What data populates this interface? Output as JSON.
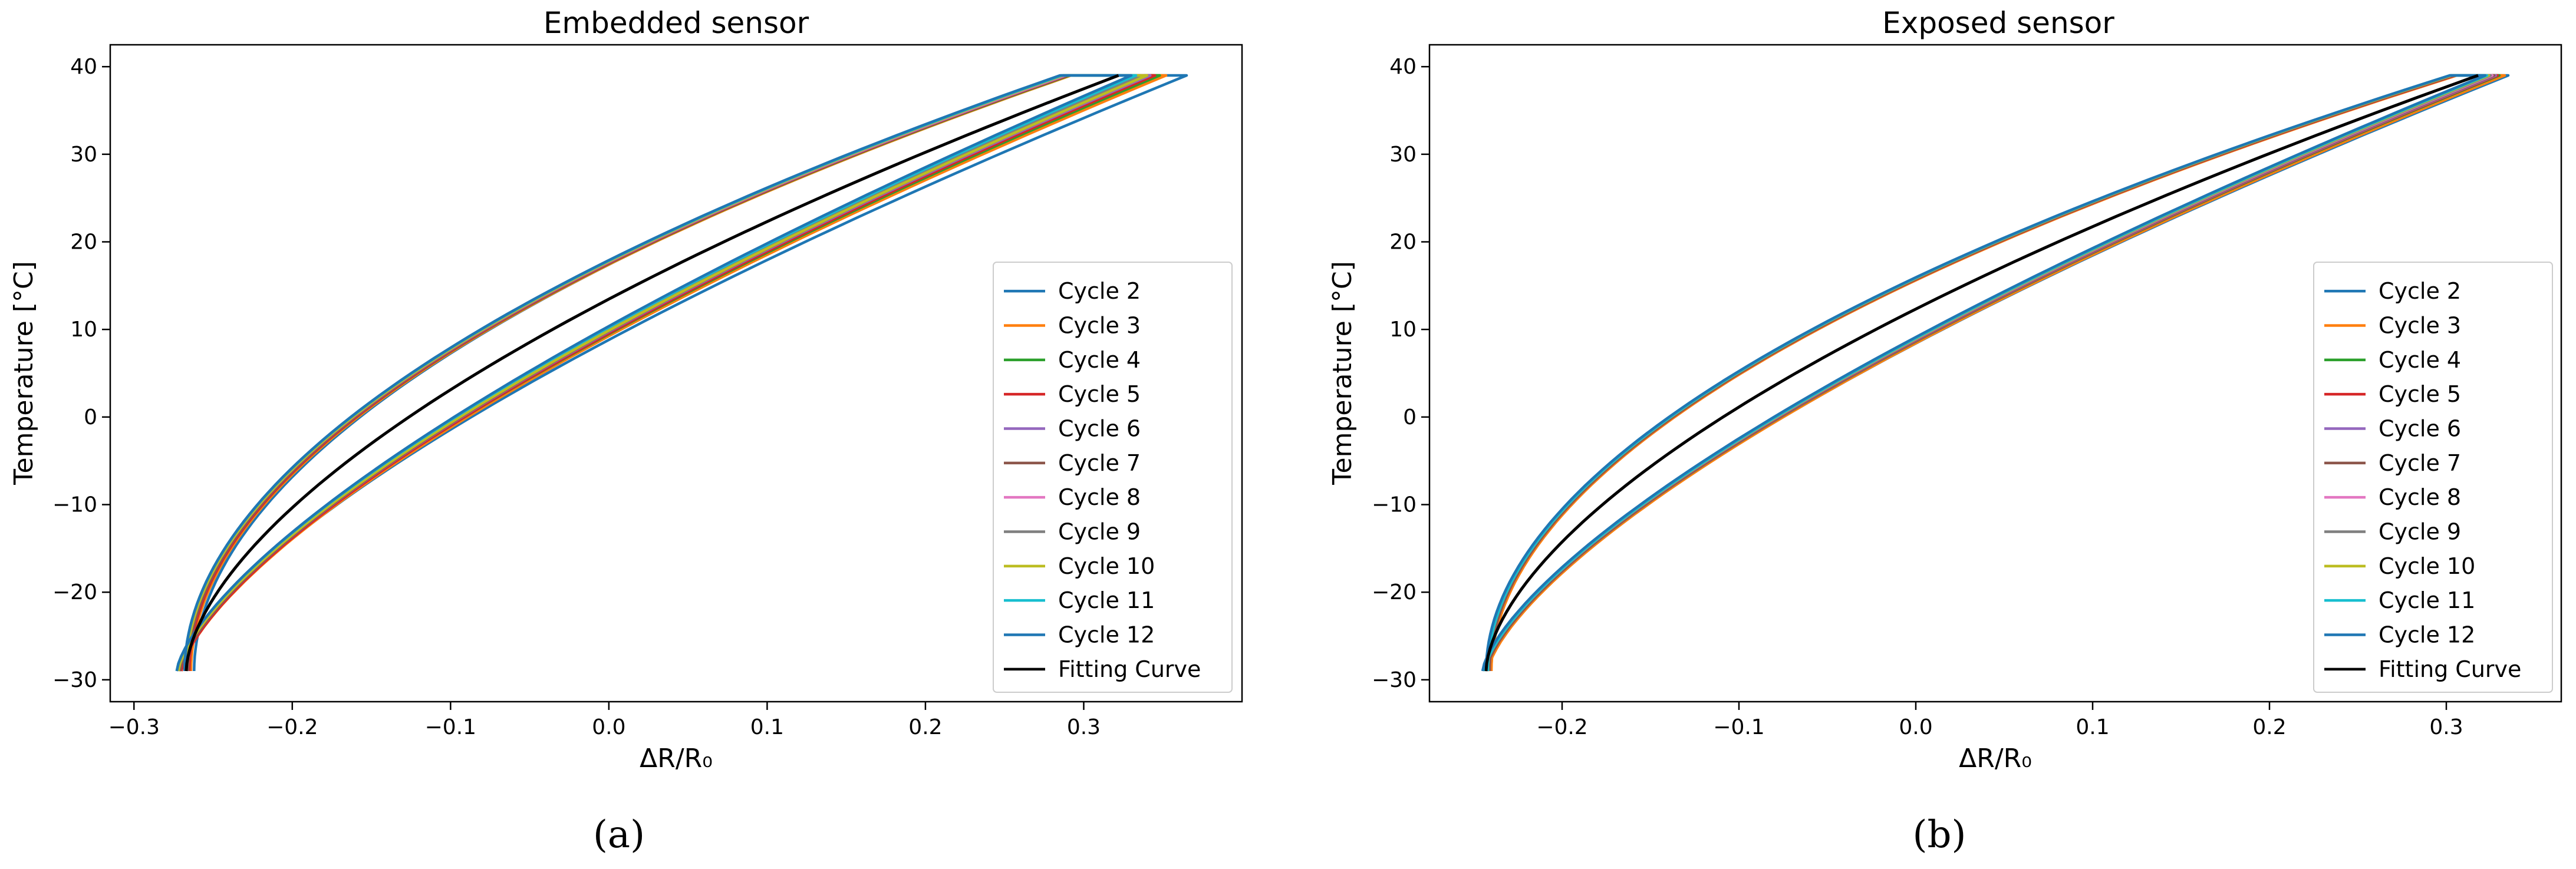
{
  "figure": {
    "panel_labels": [
      "(a)",
      "(b)"
    ]
  },
  "legend_entries": [
    {
      "label": "Cycle 2",
      "color": "#1f77b4"
    },
    {
      "label": "Cycle 3",
      "color": "#ff7f0e"
    },
    {
      "label": "Cycle 4",
      "color": "#2ca02c"
    },
    {
      "label": "Cycle 5",
      "color": "#d62728"
    },
    {
      "label": "Cycle 6",
      "color": "#9467bd"
    },
    {
      "label": "Cycle 7",
      "color": "#8c564b"
    },
    {
      "label": "Cycle 8",
      "color": "#e377c2"
    },
    {
      "label": "Cycle 9",
      "color": "#7f7f7f"
    },
    {
      "label": "Cycle 10",
      "color": "#bcbd22"
    },
    {
      "label": "Cycle 11",
      "color": "#17becf"
    },
    {
      "label": "Cycle 12",
      "color": "#1f77b4"
    },
    {
      "label": "Fitting Curve",
      "color": "#000000"
    }
  ],
  "chart_data": [
    {
      "type": "line",
      "title": "Embedded sensor",
      "xlabel": "ΔR/R₀",
      "ylabel": "Temperature [°C]",
      "xlim": [
        -0.315,
        0.4
      ],
      "ylim": [
        -32.5,
        42.5
      ],
      "xticks": [
        -0.3,
        -0.2,
        -0.1,
        0.0,
        0.1,
        0.2,
        0.3
      ],
      "xtick_labels": [
        "−0.3",
        "−0.2",
        "−0.1",
        "0.0",
        "0.1",
        "0.2",
        "0.3"
      ],
      "yticks": [
        -30,
        -20,
        -10,
        0,
        10,
        20,
        30,
        40
      ],
      "ytick_labels": [
        "−30",
        "−20",
        "−10",
        "0",
        "10",
        "20",
        "30",
        "40"
      ],
      "grid": false,
      "legend_position": "lower-right",
      "series": [
        {
          "name": "Cycle 2",
          "x_start": -0.272,
          "x_heat_end": 0.365,
          "x_cool_end": 0.29,
          "x_cool_start": -0.262
        },
        {
          "name": "Cycle 3",
          "x_start": -0.27,
          "x_heat_end": 0.352,
          "x_cool_end": 0.292,
          "x_cool_start": -0.264
        },
        {
          "name": "Cycle 4",
          "x_start": -0.271,
          "x_heat_end": 0.348,
          "x_cool_end": 0.291,
          "x_cool_start": -0.265
        },
        {
          "name": "Cycle 5",
          "x_start": -0.27,
          "x_heat_end": 0.345,
          "x_cool_end": 0.29,
          "x_cool_start": -0.265
        },
        {
          "name": "Cycle 6",
          "x_start": -0.271,
          "x_heat_end": 0.342,
          "x_cool_end": 0.289,
          "x_cool_start": -0.266
        },
        {
          "name": "Cycle 7",
          "x_start": -0.271,
          "x_heat_end": 0.34,
          "x_cool_end": 0.288,
          "x_cool_start": -0.266
        },
        {
          "name": "Cycle 8",
          "x_start": -0.272,
          "x_heat_end": 0.338,
          "x_cool_end": 0.288,
          "x_cool_start": -0.267
        },
        {
          "name": "Cycle 9",
          "x_start": -0.272,
          "x_heat_end": 0.336,
          "x_cool_end": 0.287,
          "x_cool_start": -0.267
        },
        {
          "name": "Cycle 10",
          "x_start": -0.272,
          "x_heat_end": 0.34,
          "x_cool_end": 0.287,
          "x_cool_start": -0.267
        },
        {
          "name": "Cycle 11",
          "x_start": -0.273,
          "x_heat_end": 0.333,
          "x_cool_end": 0.286,
          "x_cool_start": -0.268
        },
        {
          "name": "Cycle 12",
          "x_start": -0.273,
          "x_heat_end": 0.33,
          "x_cool_end": 0.285,
          "x_cool_start": -0.268
        }
      ],
      "fit": {
        "name": "Fitting Curve",
        "x_start": -0.267,
        "x_end": 0.322,
        "y_start": -29,
        "y_end": 39
      },
      "y_range": [
        -29,
        39
      ]
    },
    {
      "type": "line",
      "title": "Exposed sensor",
      "xlabel": "ΔR/R₀",
      "ylabel": "Temperature [°C]",
      "xlim": [
        -0.275,
        0.365
      ],
      "ylim": [
        -32.5,
        42.5
      ],
      "xticks": [
        -0.2,
        -0.1,
        0.0,
        0.1,
        0.2,
        0.3
      ],
      "xtick_labels": [
        "−0.2",
        "−0.1",
        "0.0",
        "0.1",
        "0.2",
        "0.3"
      ],
      "yticks": [
        -30,
        -20,
        -10,
        0,
        10,
        20,
        30,
        40
      ],
      "ytick_labels": [
        "−30",
        "−20",
        "−10",
        "0",
        "10",
        "20",
        "30",
        "40"
      ],
      "grid": false,
      "legend_position": "lower-right",
      "series": [
        {
          "name": "Cycle 2",
          "x_start": -0.243,
          "x_heat_end": 0.335,
          "x_cool_end": 0.305,
          "x_cool_start": -0.241
        },
        {
          "name": "Cycle 3",
          "x_start": -0.242,
          "x_heat_end": 0.333,
          "x_cool_end": 0.306,
          "x_cool_start": -0.24
        },
        {
          "name": "Cycle 4",
          "x_start": -0.243,
          "x_heat_end": 0.33,
          "x_cool_end": 0.305,
          "x_cool_start": -0.241
        },
        {
          "name": "Cycle 5",
          "x_start": -0.243,
          "x_heat_end": 0.329,
          "x_cool_end": 0.305,
          "x_cool_start": -0.241
        },
        {
          "name": "Cycle 6",
          "x_start": -0.243,
          "x_heat_end": 0.328,
          "x_cool_end": 0.304,
          "x_cool_start": -0.241
        },
        {
          "name": "Cycle 7",
          "x_start": -0.243,
          "x_heat_end": 0.327,
          "x_cool_end": 0.304,
          "x_cool_start": -0.241
        },
        {
          "name": "Cycle 8",
          "x_start": -0.244,
          "x_heat_end": 0.326,
          "x_cool_end": 0.303,
          "x_cool_start": -0.242
        },
        {
          "name": "Cycle 9",
          "x_start": -0.244,
          "x_heat_end": 0.325,
          "x_cool_end": 0.303,
          "x_cool_start": -0.242
        },
        {
          "name": "Cycle 10",
          "x_start": -0.244,
          "x_heat_end": 0.324,
          "x_cool_end": 0.303,
          "x_cool_start": -0.242
        },
        {
          "name": "Cycle 11",
          "x_start": -0.244,
          "x_heat_end": 0.323,
          "x_cool_end": 0.302,
          "x_cool_start": -0.242
        },
        {
          "name": "Cycle 12",
          "x_start": -0.245,
          "x_heat_end": 0.322,
          "x_cool_end": 0.302,
          "x_cool_start": -0.243
        }
      ],
      "fit": {
        "name": "Fitting Curve",
        "x_start": -0.243,
        "x_end": 0.318,
        "y_start": -29,
        "y_end": 39
      },
      "y_range": [
        -29,
        39
      ]
    }
  ]
}
